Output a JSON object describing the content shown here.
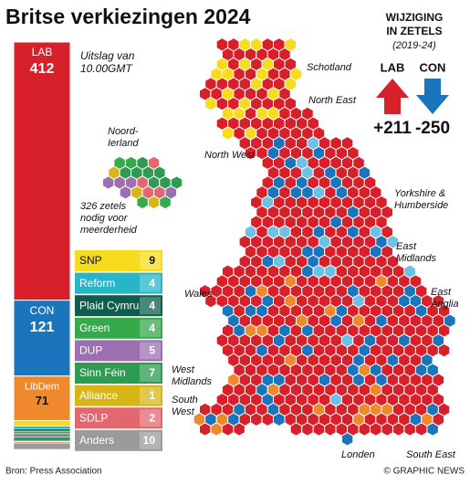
{
  "header": {
    "title": "Britse verkiezingen 2024"
  },
  "note": [
    "Uitslag van",
    "10.00GMT"
  ],
  "majority": [
    "326 zetels",
    "nodig voor",
    "meerderheid"
  ],
  "bar": [
    {
      "name": "LAB",
      "value": 412,
      "color": "#d7202a"
    },
    {
      "name": "CON",
      "value": 121,
      "color": "#1b75bc"
    },
    {
      "name": "LibDem",
      "value": 71,
      "color": "#f0892e"
    }
  ],
  "table": [
    {
      "name": "SNP",
      "value": 9,
      "color": "#f6dc1c"
    },
    {
      "name": "Reform",
      "value": 4,
      "color": "#26b6c8"
    },
    {
      "name": "Plaid Cymru",
      "value": 4,
      "color": "#0c5f4e"
    },
    {
      "name": "Green",
      "value": 4,
      "color": "#36a94a"
    },
    {
      "name": "DUP",
      "value": 5,
      "color": "#9c6fb0"
    },
    {
      "name": "Sinn Féin",
      "value": 7,
      "color": "#2f9a52"
    },
    {
      "name": "Alliance",
      "value": 1,
      "color": "#d8b516"
    },
    {
      "name": "SDLP",
      "value": 2,
      "color": "#e2676f"
    },
    {
      "name": "Anders",
      "value": 10,
      "color": "#9b9b9b"
    }
  ],
  "change": {
    "title": [
      "WIJZIGING",
      "IN ZETELS"
    ],
    "period": "(2019-24)",
    "parties": [
      {
        "name": "LAB",
        "text": "+211"
      },
      {
        "name": "CON",
        "text": "-250"
      }
    ]
  },
  "regions": [
    [
      "Schotland"
    ],
    [
      "North East"
    ],
    [
      "North West"
    ],
    [
      "Yorkshire &",
      "Humberside"
    ],
    [
      "East",
      "Midlands"
    ],
    [
      "East",
      "Anglia"
    ],
    [
      "Wales"
    ],
    [
      "West",
      "Midlands"
    ],
    [
      "South",
      "West"
    ],
    [
      "Londen"
    ],
    [
      "South East"
    ],
    [
      "Noord-",
      "Ierland"
    ]
  ],
  "footer": {
    "source": "Bron: Press Association",
    "credit": "© GRAPHIC NEWS"
  }
}
